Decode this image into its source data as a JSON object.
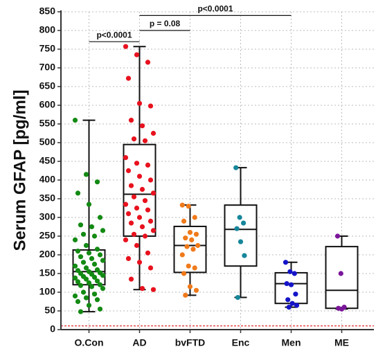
{
  "chart_data": {
    "type": "box",
    "y_label": "Serum GFAP [pg/ml]",
    "ylim": [
      0,
      850
    ],
    "yticks": [
      0,
      50,
      100,
      150,
      200,
      250,
      300,
      350,
      400,
      450,
      500,
      550,
      600,
      650,
      700,
      750,
      800,
      850
    ],
    "grid": true,
    "reference_line": {
      "value": 10,
      "color": "#e03030"
    },
    "categories": [
      "O.Con",
      "AD",
      "bvFTD",
      "Enc",
      "Men",
      "ME"
    ],
    "series": [
      {
        "name": "O.Con",
        "color": "#138a13",
        "min": 48,
        "q1": 120,
        "median": 155,
        "q3": 213,
        "max": 560,
        "points": [
          560,
          415,
          395,
          365,
          335,
          300,
          280,
          275,
          265,
          255,
          250,
          240,
          225,
          215,
          210,
          205,
          200,
          195,
          190,
          185,
          180,
          175,
          170,
          165,
          160,
          158,
          155,
          152,
          150,
          148,
          145,
          142,
          140,
          138,
          135,
          130,
          128,
          125,
          120,
          118,
          115,
          110,
          100,
          95,
          90,
          85,
          80,
          75,
          65,
          55,
          48
        ]
      },
      {
        "name": "AD",
        "color": "#e8121e",
        "min": 107,
        "q1": 250,
        "median": 362,
        "q3": 495,
        "max": 757,
        "points": [
          757,
          735,
          715,
          672,
          605,
          598,
          560,
          545,
          525,
          510,
          505,
          460,
          445,
          440,
          425,
          410,
          400,
          385,
          375,
          365,
          355,
          345,
          335,
          325,
          320,
          310,
          300,
          290,
          285,
          275,
          265,
          255,
          250,
          240,
          225,
          205,
          190,
          180,
          165,
          135,
          110,
          107
        ]
      },
      {
        "name": "bvFTD",
        "color": "#f07a1a",
        "min": 92,
        "q1": 153,
        "median": 225,
        "q3": 276,
        "max": 333,
        "points": [
          333,
          330,
          300,
          290,
          260,
          255,
          245,
          240,
          225,
          222,
          215,
          200,
          170,
          165,
          150,
          115,
          105,
          92
        ]
      },
      {
        "name": "Enc",
        "color": "#16869a",
        "min": 86,
        "q1": 170,
        "median": 268,
        "q3": 333,
        "max": 433,
        "points": [
          433,
          300,
          285,
          270,
          235,
          198,
          86
        ]
      },
      {
        "name": "Men",
        "color": "#1414c8",
        "min": 60,
        "q1": 70,
        "median": 123,
        "q3": 152,
        "max": 180,
        "points": [
          180,
          155,
          150,
          123,
          120,
          95,
          80,
          70,
          65,
          60
        ]
      },
      {
        "name": "ME",
        "color": "#7a169a",
        "min": 55,
        "q1": 57,
        "median": 105,
        "q3": 222,
        "max": 250,
        "points": [
          250,
          150,
          60,
          57,
          55
        ]
      }
    ],
    "annotations": [
      {
        "text": "p<0.0001",
        "y": 770
      },
      {
        "text": "p = 0.08",
        "y": 800
      },
      {
        "text": "p<0.0001",
        "y": 840
      }
    ]
  }
}
